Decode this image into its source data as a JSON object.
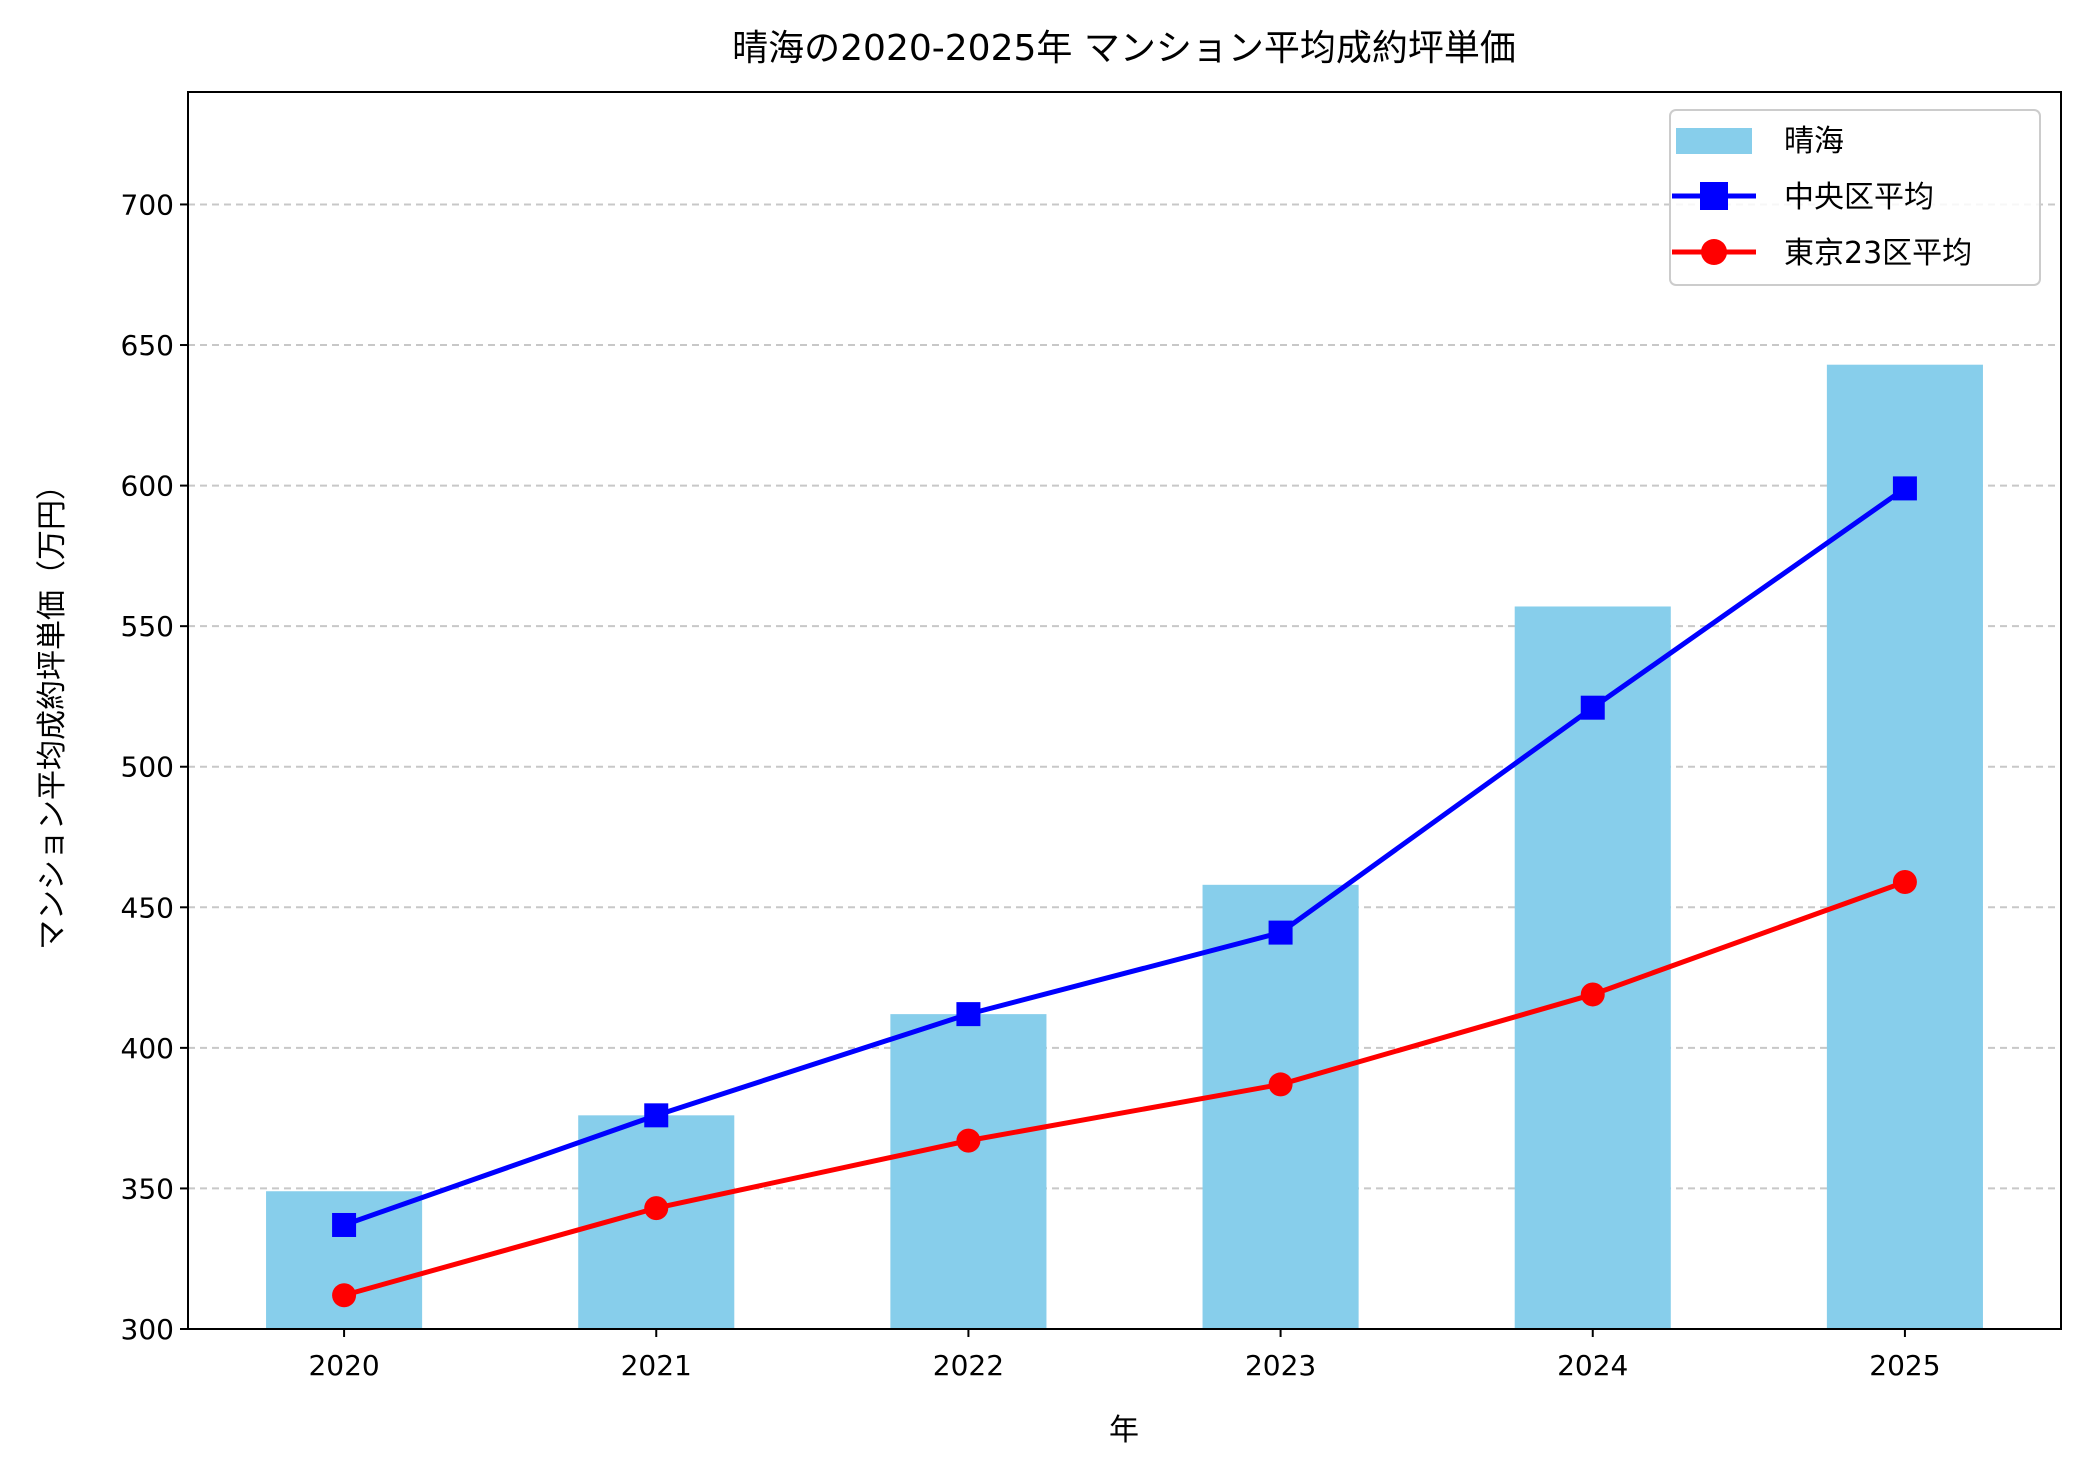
{
  "chart_data": {
    "type": "bar+line",
    "title": "晴海の2020-2025年 マンション平均成約坪単価",
    "xlabel": "年",
    "ylabel": "マンション平均成約坪単価（万円）",
    "categories": [
      "2020",
      "2021",
      "2022",
      "2023",
      "2024",
      "2025"
    ],
    "ylim": [
      300,
      740
    ],
    "yticks": [
      300,
      350,
      400,
      450,
      500,
      550,
      600,
      650,
      700
    ],
    "grid": "y-dashed",
    "legend": "top-right",
    "series": [
      {
        "name": "晴海",
        "kind": "bar",
        "color": "#87ceeb",
        "values": [
          349,
          376,
          412,
          458,
          557,
          643
        ]
      },
      {
        "name": "中央区平均",
        "kind": "line",
        "marker": "square",
        "color": "#0000ff",
        "values": [
          337,
          376,
          412,
          441,
          521,
          599
        ]
      },
      {
        "name": "東京23区平均",
        "kind": "line",
        "marker": "circle",
        "color": "#ff0000",
        "values": [
          312,
          343,
          367,
          387,
          419,
          459
        ]
      }
    ]
  }
}
